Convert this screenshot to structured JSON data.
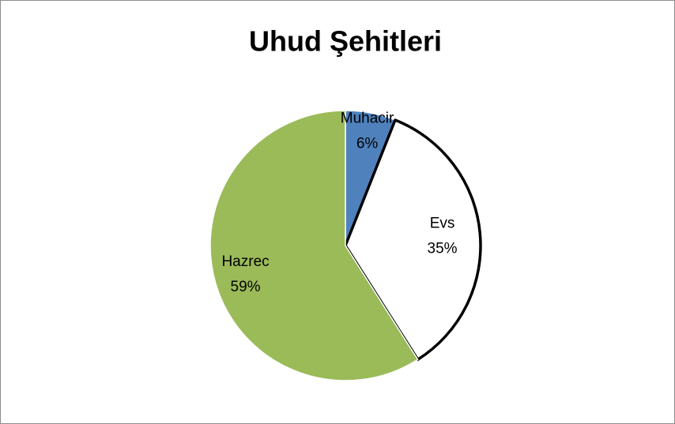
{
  "chart_data": {
    "type": "pie",
    "title": "Uhud Şehitleri",
    "categories": [
      "Muhacir",
      "Evs",
      "Hazrec"
    ],
    "values": [
      6,
      35,
      59
    ],
    "value_labels": [
      "6%",
      "35%",
      "59%"
    ],
    "colors": [
      "#4f81bd",
      "#ffffff",
      "#9bbb59"
    ],
    "edgecolors": [
      "#ffffff",
      "#000000",
      "#ffffff"
    ]
  }
}
